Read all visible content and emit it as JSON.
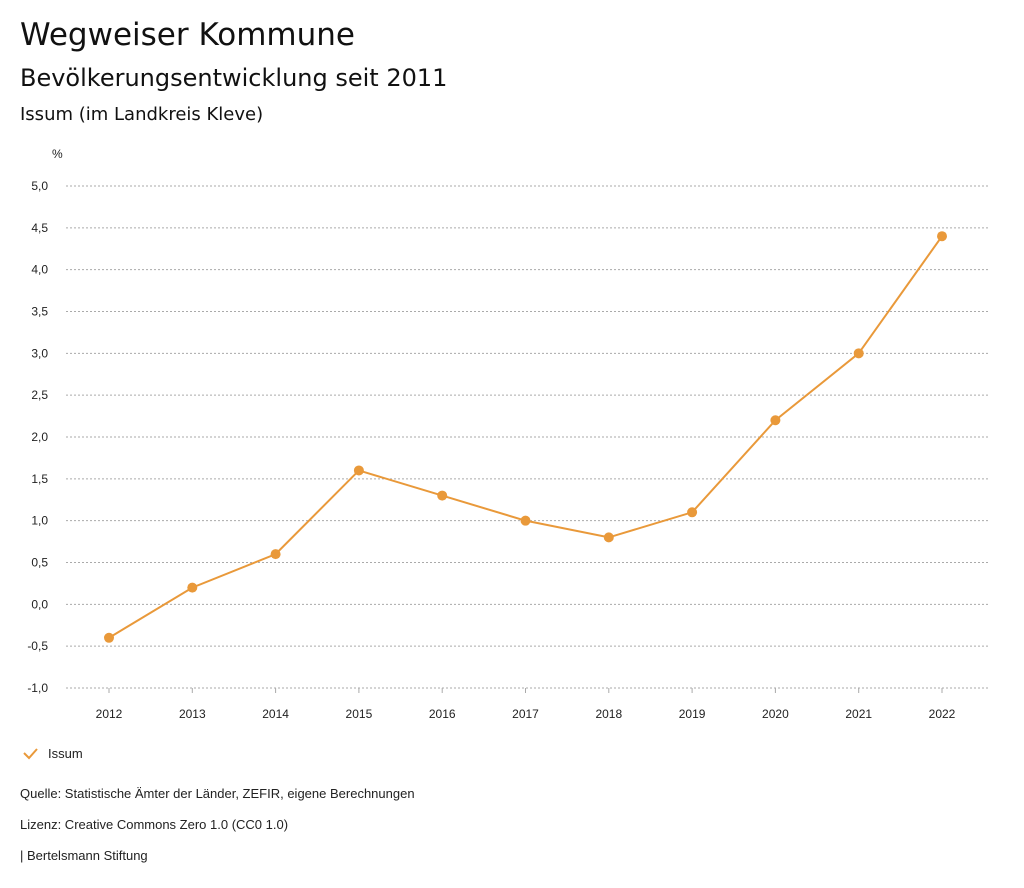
{
  "header": {
    "title": "Wegweiser Kommune",
    "subtitle": "Bevölkerungsentwicklung seit 2011",
    "location": "Issum (im Landkreis Kleve)"
  },
  "chart_data": {
    "type": "line",
    "title": "Bevölkerungsentwicklung seit 2011",
    "ylabel": "%",
    "xlabel": "",
    "categories": [
      "2012",
      "2013",
      "2014",
      "2015",
      "2016",
      "2017",
      "2018",
      "2019",
      "2020",
      "2021",
      "2022"
    ],
    "series": [
      {
        "name": "Issum",
        "color": "#e9993a",
        "values": [
          -0.4,
          0.2,
          0.6,
          1.6,
          1.3,
          1.0,
          0.8,
          1.1,
          2.2,
          3.0,
          4.4
        ]
      }
    ],
    "ylim": [
      -1.0,
      5.0
    ],
    "yticks": [
      5.0,
      4.5,
      4.0,
      3.5,
      3.0,
      2.5,
      2.0,
      1.5,
      1.0,
      0.5,
      0.0,
      -0.5,
      -1.0
    ],
    "ytick_labels": [
      "5,0",
      "4,5",
      "4,0",
      "3,5",
      "3,0",
      "2,5",
      "2,0",
      "1,5",
      "1,0",
      "0,5",
      "0,0",
      "-0,5",
      "-1,0"
    ],
    "grid": true,
    "legend_position": "bottom-left"
  },
  "legend": {
    "label": "Issum"
  },
  "footer": {
    "source": "Quelle: Statistische Ämter der Länder, ZEFIR, eigene Berechnungen",
    "license": "Lizenz: Creative Commons Zero 1.0 (CC0 1.0)",
    "publisher": "| Bertelsmann Stiftung"
  }
}
